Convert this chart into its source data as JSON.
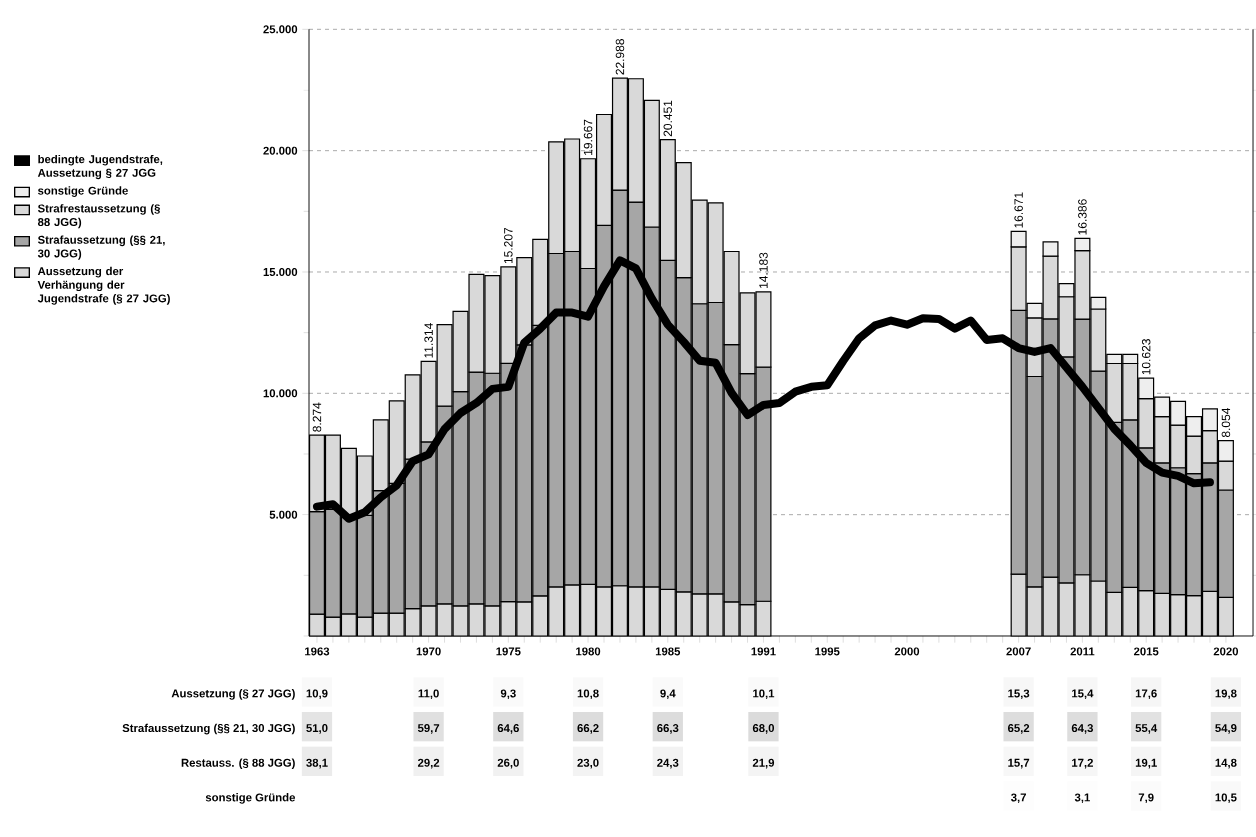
{
  "chart_data": [
    {
      "type": "bar",
      "stacked": true,
      "legend": "left",
      "grid": "y",
      "categories": [
        "1963",
        null,
        null,
        null,
        null,
        null,
        null,
        "1970",
        null,
        null,
        null,
        null,
        "1975",
        null,
        null,
        null,
        null,
        "1980",
        null,
        null,
        null,
        null,
        "1985",
        null,
        null,
        null,
        null,
        null,
        "1991",
        null,
        null,
        null,
        "1995",
        null,
        null,
        null,
        null,
        "2000",
        null,
        null,
        null,
        null,
        null,
        null,
        "2007",
        null,
        null,
        null,
        "2011",
        null,
        null,
        null,
        "2015",
        null,
        null,
        null,
        null,
        "2020"
      ],
      "ylim": [
        0,
        25000
      ],
      "yticks": [
        {
          "value": 0,
          "label": null
        },
        {
          "value": 2500,
          "label": null
        },
        {
          "value": 5000,
          "label": "5.000"
        },
        {
          "value": 7500,
          "label": null
        },
        {
          "value": 10000,
          "label": "10.000"
        },
        {
          "value": 12500,
          "label": null
        },
        {
          "value": 15000,
          "label": "15.000"
        },
        {
          "value": 17500,
          "label": null
        },
        {
          "value": 20000,
          "label": "20.000"
        },
        {
          "value": 22500,
          "label": null
        },
        {
          "value": 25000,
          "label": "25.000"
        }
      ],
      "series": [
        {
          "name": "Aussetzung der Verhängung der Jugendstrafe (§ 27 JGG)",
          "color": "#d9d9d9",
          "values": [
            902,
            778,
            910,
            778,
            944,
            944,
            1126,
            1245,
            1325,
            1242,
            1325,
            1242,
            1414,
            1407,
            1656,
            2020,
            2103,
            2124,
            2020,
            2070,
            2020,
            2020,
            1922,
            1821,
            1738,
            1738,
            1407,
            1291,
            1432,
            null,
            null,
            null,
            null,
            null,
            null,
            null,
            null,
            null,
            null,
            null,
            null,
            null,
            null,
            null,
            2551,
            2027,
            2427,
            2187,
            2523,
            2267,
            1800,
            2000,
            1870,
            1760,
            1707,
            1667,
            1840,
            1595
          ]
        },
        {
          "name": "Strafaussetzung (§§ 21, 30 JGG)",
          "color": "#a6a6a6",
          "values": [
            4220,
            4437,
            4057,
            4189,
            5049,
            5347,
            6159,
            6754,
            8145,
            8824,
            9552,
            9586,
            9824,
            10593,
            11144,
            13742,
            13741,
            13020,
            14901,
            16307,
            15861,
            14834,
            13559,
            12947,
            11954,
            12004,
            10596,
            9520,
            9644,
            null,
            null,
            null,
            null,
            null,
            null,
            null,
            null,
            null,
            null,
            null,
            null,
            null,
            null,
            null,
            10869,
            8666,
            10639,
            9313,
            10536,
            8647,
            7000,
            6907,
            5885,
            5373,
            5226,
            5026,
            5293,
            4422
          ]
        },
        {
          "name": "Strafrestaussetzung (§ 88 JGG)",
          "color": "#d9d9d9",
          "values": [
            3152,
            3063,
            2765,
            2450,
            2914,
            3394,
            3477,
            3315,
            3361,
            3311,
            4024,
            4023,
            3969,
            3596,
            3541,
            4602,
            4636,
            4523,
            4569,
            4611,
            5083,
            5216,
            4970,
            4735,
            4272,
            4106,
            3841,
            3328,
            3107,
            null,
            null,
            null,
            null,
            null,
            null,
            null,
            null,
            null,
            null,
            null,
            null,
            null,
            null,
            null,
            2617,
            2414,
            2588,
            2479,
            2818,
            2561,
            2428,
            2321,
            2029,
            1907,
            1760,
            1547,
            1334,
            1192
          ]
        },
        {
          "name": "sonstige Gründe",
          "color": "#eeeeee",
          "values": [
            null,
            null,
            null,
            null,
            null,
            null,
            null,
            null,
            null,
            null,
            null,
            null,
            null,
            null,
            null,
            null,
            null,
            null,
            null,
            null,
            null,
            null,
            null,
            null,
            null,
            null,
            null,
            null,
            null,
            null,
            null,
            null,
            null,
            null,
            null,
            null,
            null,
            null,
            null,
            null,
            null,
            null,
            null,
            null,
            634,
            600,
            585,
            544,
            509,
            476,
            381,
            381,
            839,
            800,
            974,
            800,
            893,
            845
          ]
        },
        {
          "name": "bedingte Jugendstrafe, Aussetzung § 27 JGG",
          "type": "line",
          "color": "#000000",
          "values": [
            5331,
            5430,
            4834,
            5099,
            5712,
            6209,
            7202,
            7483,
            8526,
            9189,
            9603,
            10182,
            10265,
            12086,
            12666,
            13328,
            13328,
            13162,
            14404,
            15480,
            15149,
            13907,
            12831,
            12119,
            11341,
            11258,
            10017,
            9106,
            9520,
            9600,
            10067,
            10267,
            10333,
            11333,
            12267,
            12800,
            13000,
            12827,
            13093,
            13067,
            12667,
            13000,
            12200,
            12267,
            11867,
            11707,
            11867,
            11067,
            10267,
            9400,
            8533,
            7867,
            7133,
            6733,
            6600,
            6293,
            6333,
            null
          ]
        }
      ],
      "totals": [
        "8.274",
        null,
        null,
        null,
        null,
        null,
        null,
        "11.314",
        null,
        null,
        null,
        null,
        "15.207",
        null,
        null,
        null,
        null,
        "19.667",
        null,
        "22.988",
        null,
        null,
        "20.451",
        null,
        null,
        null,
        null,
        null,
        "14.183",
        null,
        null,
        null,
        null,
        null,
        null,
        null,
        null,
        null,
        null,
        null,
        null,
        null,
        null,
        null,
        "16.671",
        null,
        null,
        null,
        "16.386",
        null,
        null,
        null,
        "10.623",
        null,
        null,
        null,
        null,
        "8.054"
      ]
    },
    {
      "type": "heatmap",
      "y_categories": [
        "Aussetzung (§ 27 JGG)",
        "Strafaussetzung (§§ 21, 30 JGG)",
        "Restauss. (§ 88 JGG)",
        "sonstige Gründe"
      ],
      "cells": [
        [
          10.9,
          null,
          null,
          null,
          null,
          null,
          null,
          11.0,
          null,
          null,
          null,
          null,
          9.3,
          null,
          null,
          null,
          null,
          10.8,
          null,
          null,
          null,
          null,
          9.4,
          null,
          null,
          null,
          null,
          null,
          10.1,
          null,
          null,
          null,
          null,
          null,
          null,
          null,
          null,
          null,
          null,
          null,
          null,
          null,
          null,
          null,
          15.3,
          null,
          null,
          null,
          15.4,
          null,
          null,
          null,
          17.6,
          null,
          null,
          null,
          null,
          19.8
        ],
        [
          51.0,
          null,
          null,
          null,
          null,
          null,
          null,
          59.7,
          null,
          null,
          null,
          null,
          64.6,
          null,
          null,
          null,
          null,
          66.2,
          null,
          null,
          null,
          null,
          66.3,
          null,
          null,
          null,
          null,
          null,
          68.0,
          null,
          null,
          null,
          null,
          null,
          null,
          null,
          null,
          null,
          null,
          null,
          null,
          null,
          null,
          null,
          65.2,
          null,
          null,
          null,
          64.3,
          null,
          null,
          null,
          55.4,
          null,
          null,
          null,
          null,
          54.9
        ],
        [
          38.1,
          null,
          null,
          null,
          null,
          null,
          null,
          29.2,
          null,
          null,
          null,
          null,
          26.0,
          null,
          null,
          null,
          null,
          23.0,
          null,
          null,
          null,
          null,
          24.3,
          null,
          null,
          null,
          null,
          null,
          21.9,
          null,
          null,
          null,
          null,
          null,
          null,
          null,
          null,
          null,
          null,
          null,
          null,
          null,
          null,
          null,
          15.7,
          null,
          null,
          null,
          17.2,
          null,
          null,
          null,
          19.1,
          null,
          null,
          null,
          null,
          14.8
        ],
        [
          null,
          null,
          null,
          null,
          null,
          null,
          null,
          null,
          null,
          null,
          null,
          null,
          null,
          null,
          null,
          null,
          null,
          null,
          null,
          null,
          null,
          null,
          null,
          null,
          null,
          null,
          null,
          null,
          null,
          null,
          null,
          null,
          null,
          null,
          null,
          null,
          null,
          null,
          null,
          null,
          null,
          null,
          null,
          null,
          3.7,
          null,
          null,
          null,
          3.1,
          null,
          null,
          null,
          7.9,
          null,
          null,
          null,
          null,
          10.5
        ]
      ],
      "cell_labels": [
        [
          "10,9",
          null,
          null,
          null,
          null,
          null,
          null,
          "11,0",
          null,
          null,
          null,
          null,
          "9,3",
          null,
          null,
          null,
          null,
          "10,8",
          null,
          null,
          null,
          null,
          "9,4",
          null,
          null,
          null,
          null,
          null,
          "10,1",
          null,
          null,
          null,
          null,
          null,
          null,
          null,
          null,
          null,
          null,
          null,
          null,
          null,
          null,
          null,
          "15,3",
          null,
          null,
          null,
          "15,4",
          null,
          null,
          null,
          "17,6",
          null,
          null,
          null,
          null,
          "19,8"
        ],
        [
          "51,0",
          null,
          null,
          null,
          null,
          null,
          null,
          "59,7",
          null,
          null,
          null,
          null,
          "64,6",
          null,
          null,
          null,
          null,
          "66,2",
          null,
          null,
          null,
          null,
          "66,3",
          null,
          null,
          null,
          null,
          null,
          "68,0",
          null,
          null,
          null,
          null,
          null,
          null,
          null,
          null,
          null,
          null,
          null,
          null,
          null,
          null,
          null,
          "65,2",
          null,
          null,
          null,
          "64,3",
          null,
          null,
          null,
          "55,4",
          null,
          null,
          null,
          null,
          "54,9"
        ],
        [
          "38,1",
          null,
          null,
          null,
          null,
          null,
          null,
          "29,2",
          null,
          null,
          null,
          null,
          "26,0",
          null,
          null,
          null,
          null,
          "23,0",
          null,
          null,
          null,
          null,
          "24,3",
          null,
          null,
          null,
          null,
          null,
          "21,9",
          null,
          null,
          null,
          null,
          null,
          null,
          null,
          null,
          null,
          null,
          null,
          null,
          null,
          null,
          null,
          "15,7",
          null,
          null,
          null,
          "17,2",
          null,
          null,
          null,
          "19,1",
          null,
          null,
          null,
          null,
          "14,8"
        ],
        [
          null,
          null,
          null,
          null,
          null,
          null,
          null,
          null,
          null,
          null,
          null,
          null,
          null,
          null,
          null,
          null,
          null,
          null,
          null,
          null,
          null,
          null,
          null,
          null,
          null,
          null,
          null,
          null,
          null,
          null,
          null,
          null,
          null,
          null,
          null,
          null,
          null,
          null,
          null,
          null,
          null,
          null,
          null,
          null,
          "3,7",
          null,
          null,
          null,
          "3,1",
          null,
          null,
          null,
          "7,9",
          null,
          null,
          null,
          null,
          "10,5"
        ]
      ],
      "categories": [
        null,
        null,
        null,
        null,
        null,
        null,
        null,
        null,
        null,
        null,
        null,
        null,
        null,
        null,
        null,
        null,
        null,
        null,
        null,
        null,
        null,
        null,
        null,
        null,
        null,
        null,
        null,
        null,
        null,
        null,
        null,
        null,
        null,
        null,
        null,
        null,
        null,
        null,
        null,
        null,
        null,
        null,
        null,
        null,
        null,
        null,
        null,
        null,
        null,
        null,
        null,
        null,
        null,
        null,
        null,
        null,
        null,
        null
      ]
    }
  ]
}
